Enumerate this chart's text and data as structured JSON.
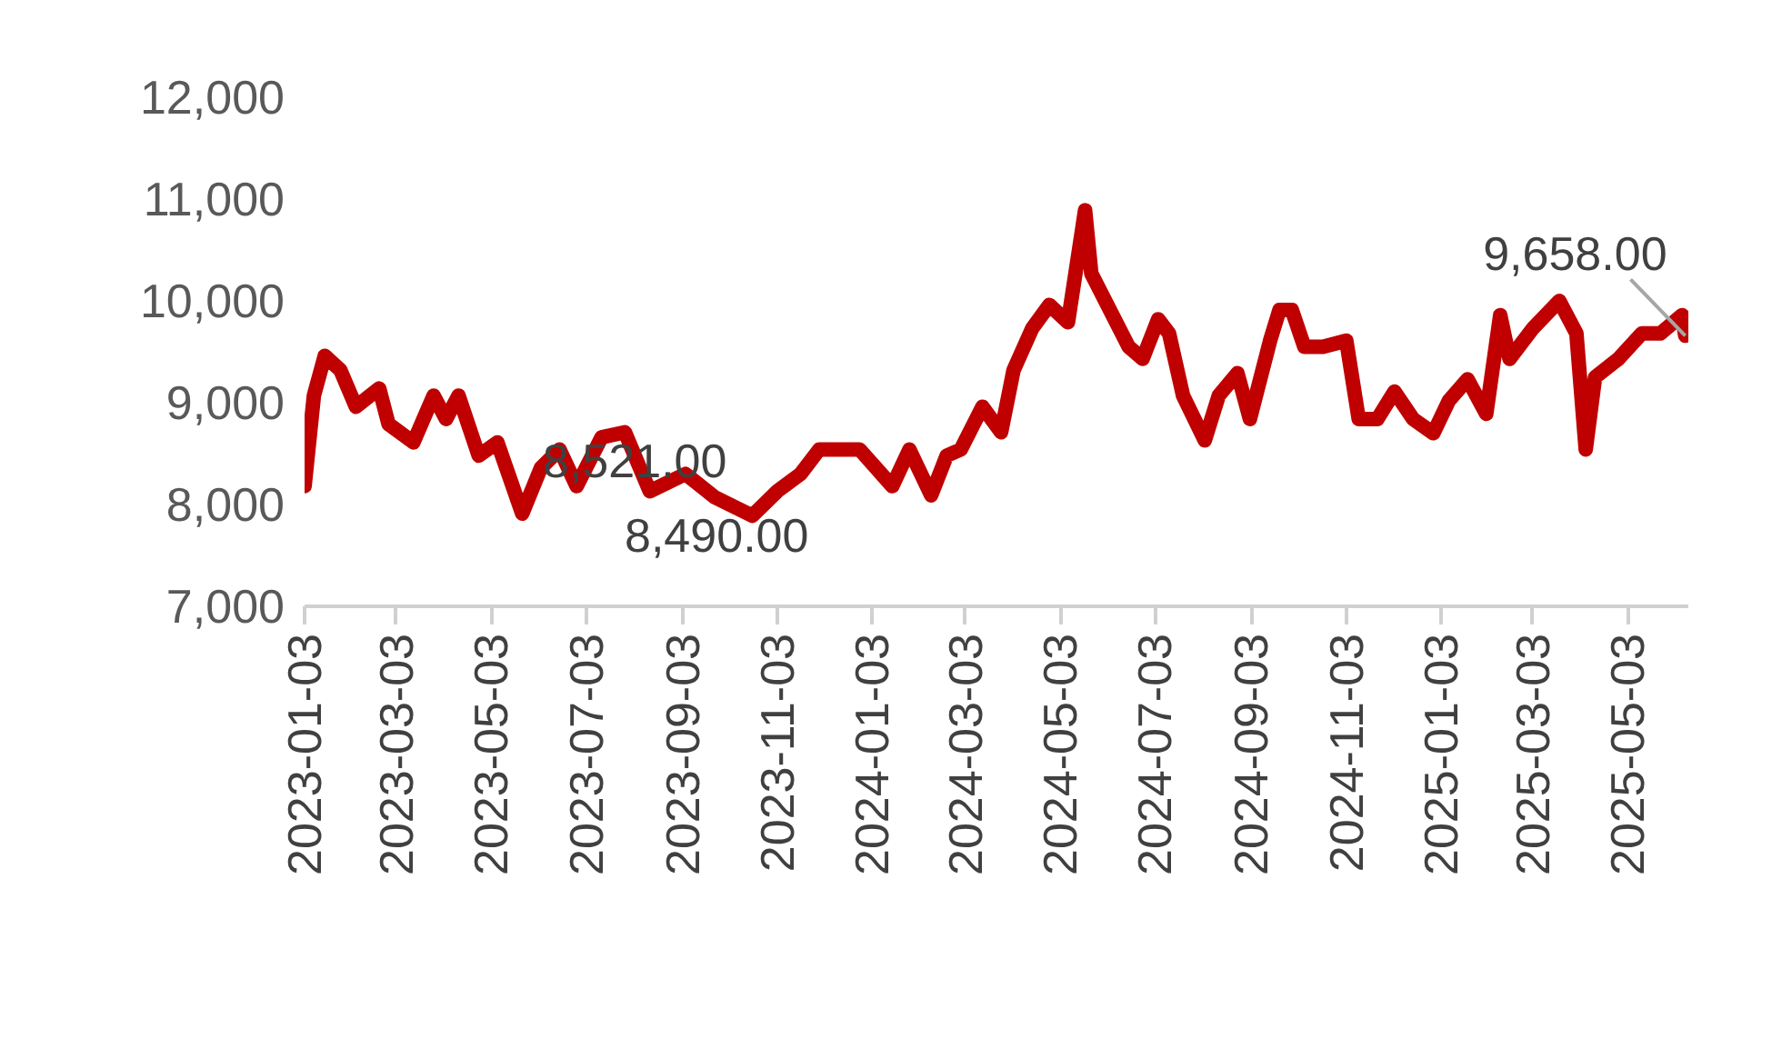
{
  "chart_data": {
    "type": "line",
    "x": [
      "2023-01-03",
      "2023-01-09",
      "2023-01-16",
      "2023-01-26",
      "2023-02-05",
      "2023-02-20",
      "2023-02-26",
      "2023-03-14",
      "2023-03-27",
      "2023-04-04",
      "2023-04-12",
      "2023-04-25",
      "2023-05-07",
      "2023-05-23",
      "2023-06-04",
      "2023-06-16",
      "2023-06-27",
      "2023-07-13",
      "2023-07-28",
      "2023-08-13",
      "2023-09-05",
      "2023-09-24",
      "2023-10-18",
      "2023-11-03",
      "2023-11-18",
      "2023-11-30",
      "2023-12-26",
      "2024-01-16",
      "2024-01-27",
      "2024-02-10",
      "2024-02-20",
      "2024-02-29",
      "2024-03-14",
      "2024-03-26",
      "2024-04-03",
      "2024-04-15",
      "2024-04-26",
      "2024-05-08",
      "2024-05-19",
      "2024-05-23",
      "2024-06-04",
      "2024-06-16",
      "2024-06-25",
      "2024-07-05",
      "2024-07-12",
      "2024-07-21",
      "2024-08-04",
      "2024-08-13",
      "2024-08-25",
      "2024-09-02",
      "2024-09-15",
      "2024-09-21",
      "2024-09-29",
      "2024-10-07",
      "2024-10-19",
      "2024-11-03",
      "2024-11-11",
      "2024-11-23",
      "2024-12-04",
      "2024-12-16",
      "2024-12-29",
      "2025-01-08",
      "2025-01-20",
      "2025-02-01",
      "2025-02-10",
      "2025-02-16",
      "2025-03-03",
      "2025-03-20",
      "2025-03-31",
      "2025-04-06",
      "2025-04-12",
      "2025-04-27",
      "2025-05-12",
      "2025-05-24",
      "2025-06-07",
      "2025-06-09"
    ],
    "series": [
      {
        "color": "#c00000",
        "values": [
          8180,
          9070,
          9460,
          9320,
          8960,
          9140,
          8790,
          8610,
          9070,
          8840,
          9070,
          8480,
          8610,
          7910,
          8360,
          8540,
          8180,
          8660,
          8710,
          8130,
          8300,
          8070,
          7890,
          8130,
          8300,
          8540,
          8540,
          8180,
          8540,
          8090,
          8480,
          8540,
          8960,
          8710,
          9320,
          9730,
          9960,
          9790,
          10890,
          10270,
          9910,
          9550,
          9430,
          9820,
          9680,
          9070,
          8630,
          9070,
          9290,
          8840,
          9610,
          9910,
          9910,
          9550,
          9550,
          9610,
          8840,
          8840,
          9110,
          8840,
          8700,
          9020,
          9230,
          8890,
          9860,
          9430,
          9730,
          10000,
          9680,
          8540,
          9250,
          9430,
          9680,
          9680,
          9860,
          9658
        ]
      }
    ],
    "xlim": [
      "2023-01-03",
      "2025-06-11"
    ],
    "xticks": [
      "2023-01-03",
      "2023-03-03",
      "2023-05-03",
      "2023-07-03",
      "2023-09-03",
      "2023-11-03",
      "2024-01-03",
      "2024-03-03",
      "2024-05-03",
      "2024-07-03",
      "2024-09-03",
      "2024-11-03",
      "2025-01-03",
      "2025-03-03",
      "2025-05-03"
    ],
    "ylim": [
      7000,
      12000
    ],
    "yticks": [
      {
        "value": 7000,
        "label": "7,000"
      },
      {
        "value": 8000,
        "label": "8,000"
      },
      {
        "value": 9000,
        "label": "9,000"
      },
      {
        "value": 10000,
        "label": "10,000"
      },
      {
        "value": 11000,
        "label": "11,000"
      },
      {
        "value": 12000,
        "label": "12,000"
      }
    ],
    "annotations": [
      "8,521.00",
      "8,490.00",
      {
        "text": "9,658.00",
        "x": "2025-06-09",
        "y": 9658
      }
    ],
    "grid": false,
    "marker": "none",
    "line_style": "solid"
  }
}
